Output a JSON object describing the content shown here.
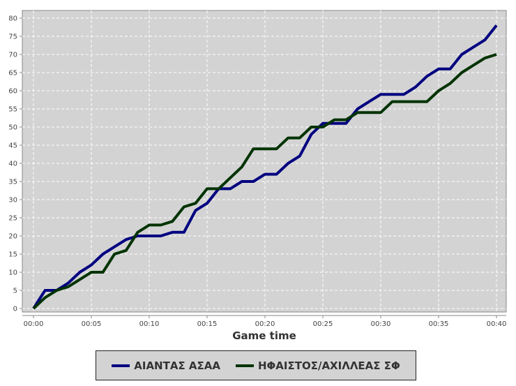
{
  "chart_data": {
    "type": "line",
    "xlabel": "Game time",
    "ylabel": "",
    "x_ticks": [
      "00:00",
      "00:05",
      "00:10",
      "00:15",
      "00:20",
      "00:25",
      "00:30",
      "00:35",
      "00:40"
    ],
    "x_minutes": [
      0,
      1,
      2,
      3,
      4,
      5,
      6,
      7,
      8,
      9,
      10,
      11,
      12,
      13,
      14,
      15,
      16,
      17,
      18,
      19,
      20,
      21,
      22,
      23,
      24,
      25,
      26,
      27,
      28,
      29,
      30,
      31,
      32,
      33,
      34,
      35,
      36,
      37,
      38,
      39,
      40
    ],
    "xlim": [
      "00:00",
      "00:40"
    ],
    "ylim": [
      0,
      80
    ],
    "y_ticks": [
      0,
      5,
      10,
      15,
      20,
      25,
      30,
      35,
      40,
      45,
      50,
      55,
      60,
      65,
      70,
      75,
      80
    ],
    "grid": true,
    "legend_placement": "bottom",
    "series": [
      {
        "name": "ΑΙΑΝΤΑΣ ΑΣΑΑ",
        "color": "#000080",
        "values": [
          0,
          5,
          5,
          7,
          10,
          12,
          15,
          17,
          19,
          20,
          20,
          20,
          21,
          21,
          27,
          29,
          33,
          33,
          35,
          35,
          37,
          37,
          40,
          42,
          48,
          51,
          51,
          51,
          55,
          57,
          59,
          59,
          59,
          61,
          64,
          66,
          66,
          70,
          72,
          74,
          78
        ]
      },
      {
        "name": "ΗΦΑΙΣΤΟΣ/ΑΧΙΛΛΕΑΣ ΣΦ",
        "color": "#003300",
        "values": [
          0,
          3,
          5,
          6,
          8,
          10,
          10,
          15,
          16,
          21,
          23,
          23,
          24,
          28,
          29,
          33,
          33,
          36,
          39,
          44,
          44,
          44,
          47,
          47,
          50,
          50,
          52,
          52,
          54,
          54,
          54,
          57,
          57,
          57,
          57,
          60,
          62,
          65,
          67,
          69,
          70
        ]
      }
    ]
  }
}
